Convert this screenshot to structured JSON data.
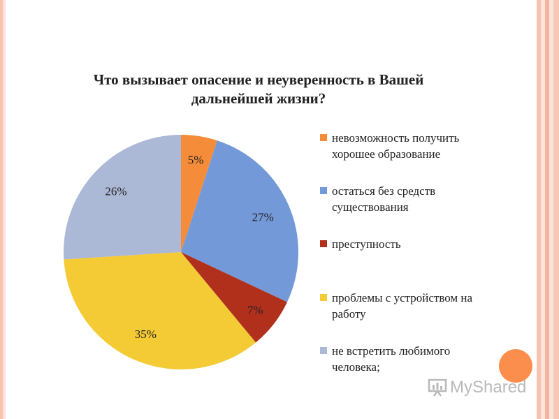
{
  "chart_data": {
    "type": "pie",
    "title": "Что вызывает опасение и неуверенность в Вашей дальнейшей жизни?",
    "categories": [
      "невозможность получить хорошее образование",
      "остаться без средств существования",
      "преступность",
      "проблемы с устройством на работу",
      "не встретить любимого человека;"
    ],
    "values": [
      5,
      27,
      7,
      35,
      26
    ],
    "data_labels": [
      "5%",
      "27%",
      "7%",
      "35%",
      "26%"
    ],
    "colors": [
      "#f58c3a",
      "#7499d8",
      "#b0301b",
      "#f4cb34",
      "#abb8d6"
    ],
    "legend_position": "right"
  },
  "watermark": {
    "text": "MyShared",
    "icon": "presentation-board-icon"
  }
}
